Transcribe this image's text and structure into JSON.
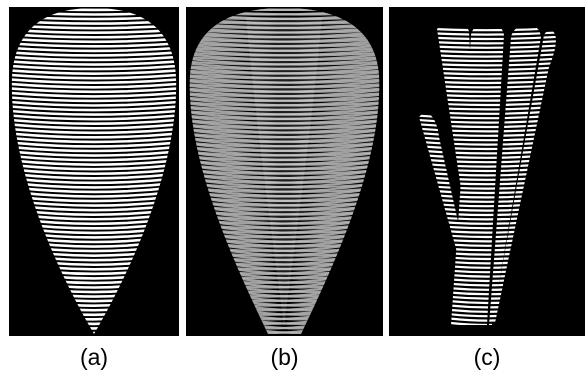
{
  "figure": {
    "panels": [
      {
        "id": "a",
        "label": "(a)"
      },
      {
        "id": "b",
        "label": "(b)"
      },
      {
        "id": "c",
        "label": "(c)"
      }
    ],
    "colors": {
      "background": "#000000",
      "stripe": "#ffffff",
      "stripe_dim": "#bdbdbd",
      "page": "#ffffff"
    }
  }
}
